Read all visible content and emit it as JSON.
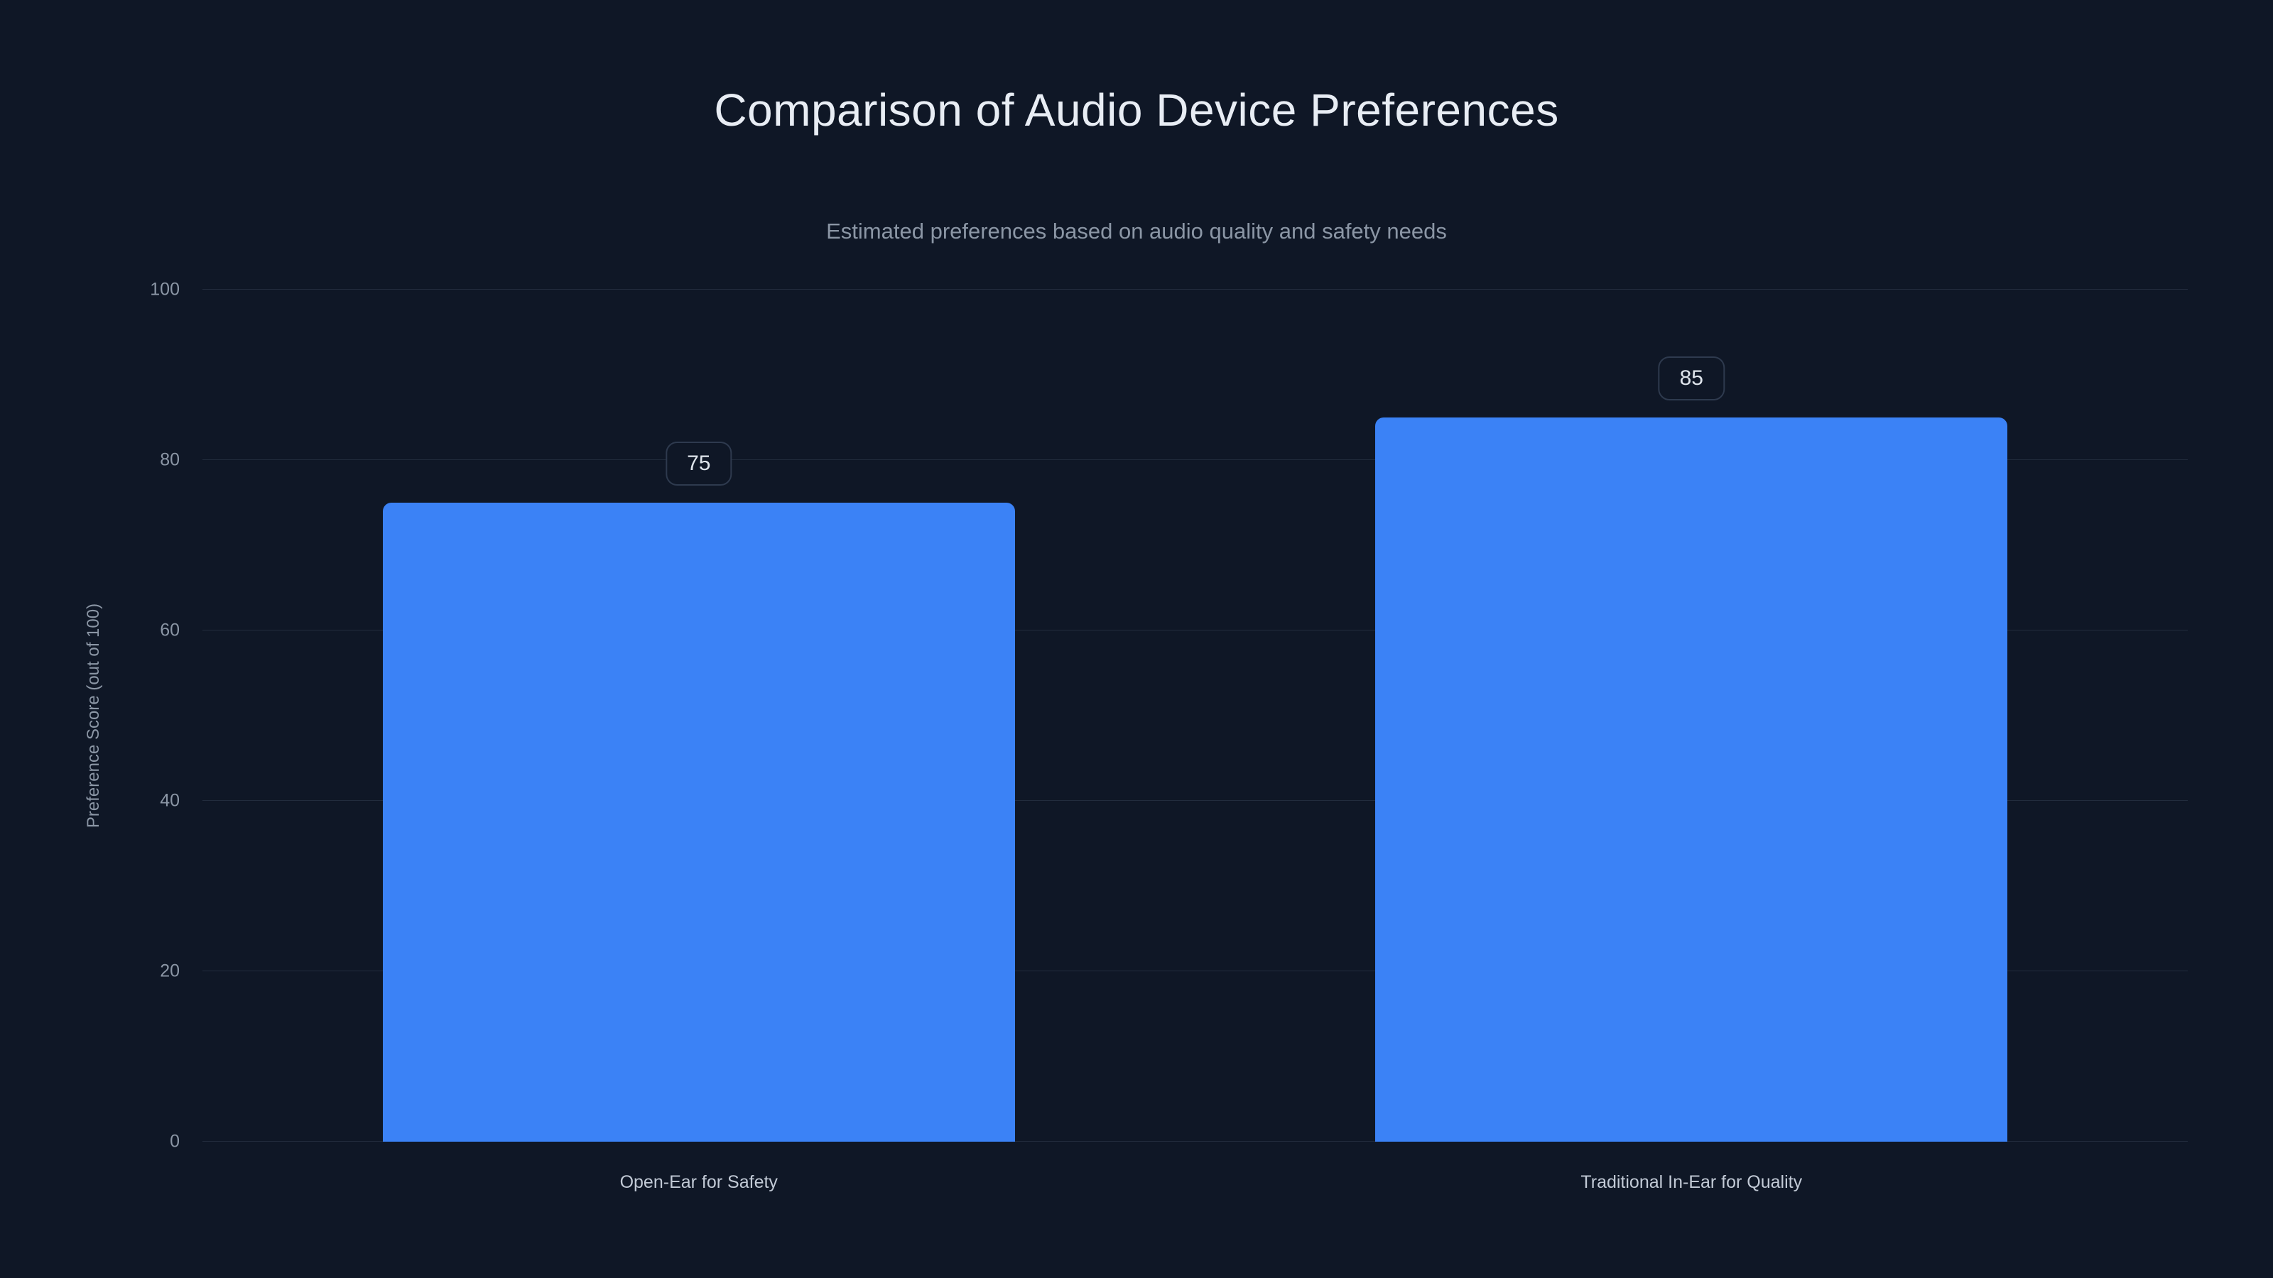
{
  "chart_data": {
    "type": "bar",
    "title": "Comparison of Audio Device Preferences",
    "subtitle": "Estimated preferences based on audio quality and safety needs",
    "categories": [
      "Open-Ear for Safety",
      "Traditional In-Ear for Quality"
    ],
    "values": [
      75,
      85
    ],
    "data_labels": [
      "75",
      "85"
    ],
    "xlabel": "",
    "ylabel": "Preference Score (out of 100)",
    "ylim": [
      0,
      100
    ],
    "yticks": [
      0,
      20,
      40,
      60,
      80,
      100
    ],
    "grid": true,
    "legend": false,
    "layout": {
      "legend_position": "none",
      "orientation": "vertical"
    },
    "colors": {
      "bar": "#3b82f6",
      "background": "#0f1726",
      "gridline": "#222c3d",
      "tick_text": "#8b96a5",
      "title_text": "#e8edf4",
      "subtitle_text": "#8b96a5",
      "category_text": "#c2cad6",
      "badge_border": "#2e3a4e",
      "badge_text": "#dfe5ec"
    }
  }
}
